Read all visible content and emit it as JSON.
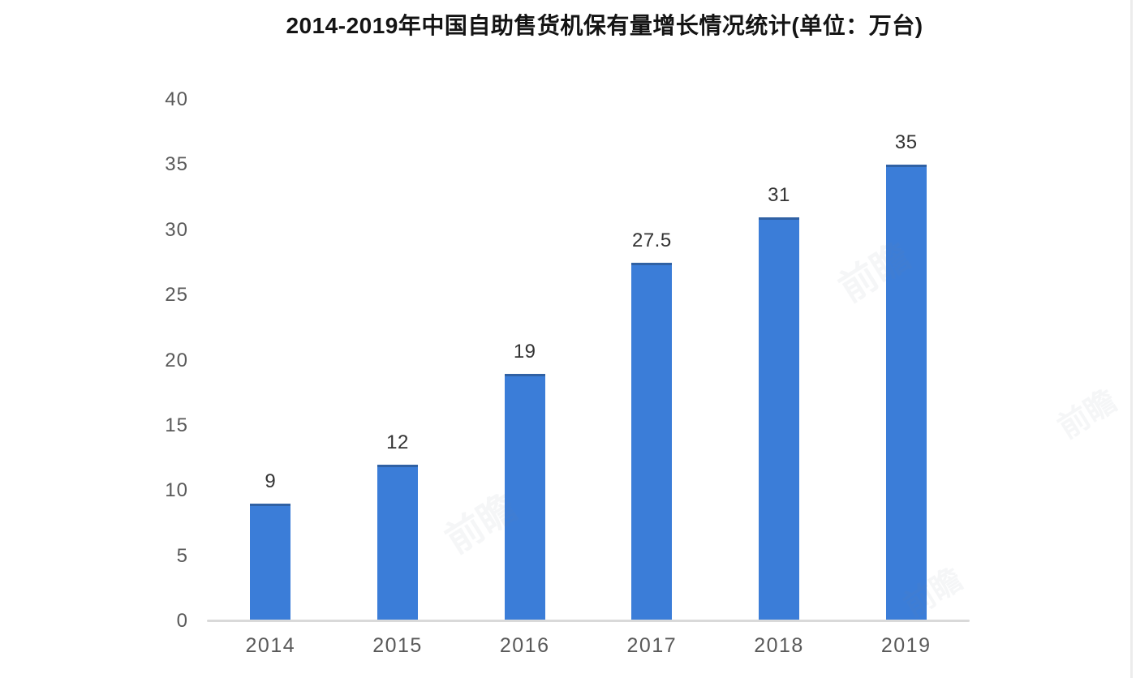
{
  "chart": {
    "title": "2014-2019年中国自助售货机保有量增长情况统计(单位：万台)"
  },
  "chart_data": {
    "type": "bar",
    "title": "2014-2019年中国自助售货机保有量增长情况统计(单位：万台)",
    "categories": [
      "2014",
      "2015",
      "2016",
      "2017",
      "2018",
      "2019"
    ],
    "values": [
      9,
      12,
      19,
      27.5,
      31,
      35
    ],
    "value_labels": [
      "9",
      "12",
      "19",
      "27.5",
      "31",
      "35"
    ],
    "unit": "万台",
    "xlabel": "",
    "ylabel": "",
    "ylim": [
      0,
      40
    ],
    "yticks": [
      0,
      5,
      10,
      15,
      20,
      25,
      30,
      35,
      40
    ],
    "grid": false,
    "legend": null,
    "bar_color": "#3b7dd8",
    "value_label_color": "#333333",
    "axis_label_color": "#595959",
    "axis_line_color": "#d9d9d9",
    "title_color": "#141414"
  },
  "watermark": {
    "text": "前瞻"
  }
}
